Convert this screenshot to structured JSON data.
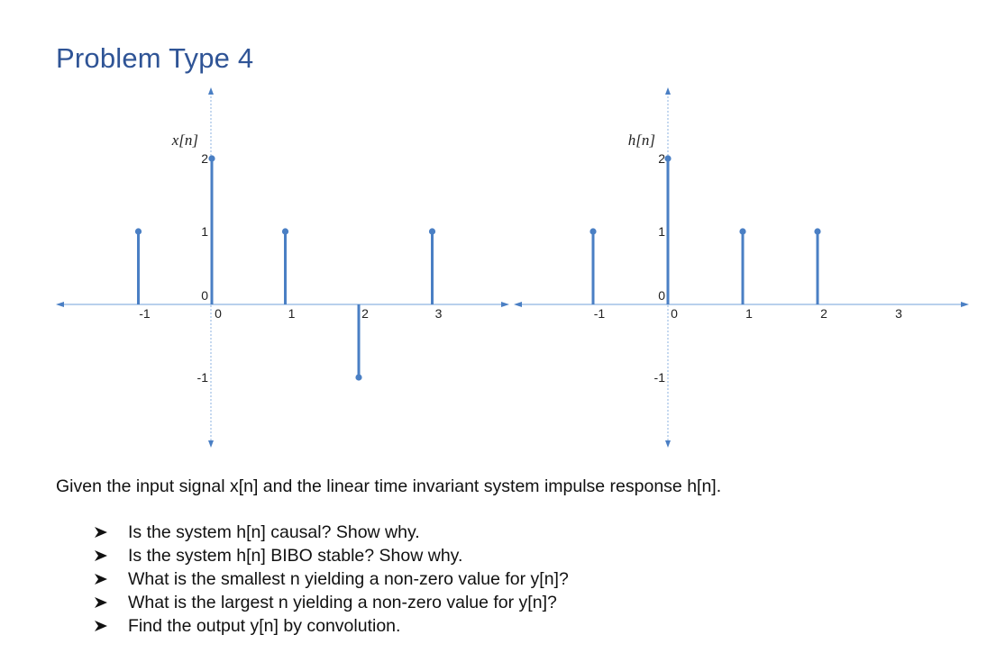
{
  "title": "Problem Type 4",
  "plots": [
    {
      "ylabel": "x[n]",
      "x_ticks": [
        "-1",
        "0",
        "1",
        "2",
        "3"
      ],
      "y_ticks": [
        "2",
        "1",
        "0",
        "-1"
      ],
      "samples": [
        {
          "n": -1,
          "value": 1
        },
        {
          "n": 0,
          "value": 2
        },
        {
          "n": 1,
          "value": 1
        },
        {
          "n": 2,
          "value": -1
        },
        {
          "n": 3,
          "value": 1
        }
      ]
    },
    {
      "ylabel": "h[n]",
      "x_ticks": [
        "-1",
        "0",
        "1",
        "2",
        "3"
      ],
      "y_ticks": [
        "2",
        "1",
        "0",
        "-1"
      ],
      "samples": [
        {
          "n": -1,
          "value": 1
        },
        {
          "n": 0,
          "value": 2
        },
        {
          "n": 1,
          "value": 1
        },
        {
          "n": 2,
          "value": 1
        }
      ]
    }
  ],
  "colors": {
    "title": "#2f5496",
    "stem": "#4a7fc4",
    "axis": "#8eb3e0"
  },
  "bullet_icon": "arrowhead-bullet",
  "intro": "Given the input signal x[n] and the linear time invariant  system impulse response h[n].",
  "questions": [
    "Is the system h[n] causal? Show why.",
    "Is the system h[n] BIBO stable? Show why.",
    "What is the smallest n yielding a non-zero value for y[n]?",
    "What is the largest n yielding a non-zero value for y[n]?",
    "Find the output y[n] by convolution."
  ]
}
